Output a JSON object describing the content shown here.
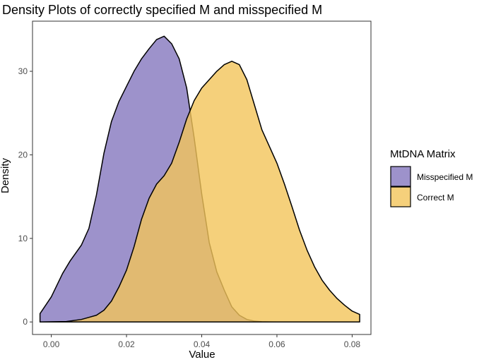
{
  "chart_data": {
    "type": "area",
    "title": "Density Plots of correctly specified M and misspecified M",
    "xlabel": "Value",
    "ylabel": "Density",
    "xlim": [
      -0.005,
      0.085
    ],
    "ylim": [
      -1.5,
      36
    ],
    "x_ticks": [
      0.0,
      0.02,
      0.04,
      0.06,
      0.08
    ],
    "x_tick_labels": [
      "0.00",
      "0.02",
      "0.04",
      "0.06",
      "0.08"
    ],
    "y_ticks": [
      0,
      10,
      20,
      30
    ],
    "y_tick_labels": [
      "0",
      "10",
      "20",
      "30"
    ],
    "grid": false,
    "legend": {
      "title": "MtDNA Matrix",
      "position": "right",
      "entries": [
        "Misspecified M",
        "Correct M"
      ]
    },
    "series": [
      {
        "name": "Misspecified M",
        "color": "#8477BE",
        "opacity": 0.8,
        "x": [
          -0.003,
          0.0,
          0.003,
          0.005,
          0.008,
          0.01,
          0.012,
          0.014,
          0.016,
          0.018,
          0.02,
          0.022,
          0.024,
          0.026,
          0.028,
          0.03,
          0.032,
          0.034,
          0.036,
          0.038,
          0.04,
          0.042,
          0.044,
          0.046,
          0.048,
          0.05,
          0.052,
          0.054,
          0.056,
          0.058,
          0.06
        ],
        "y": [
          1.0,
          3.0,
          5.8,
          7.3,
          9.2,
          11.2,
          15.2,
          20.2,
          24.0,
          26.4,
          28.2,
          30.0,
          31.5,
          32.7,
          33.8,
          34.2,
          33.3,
          31.5,
          28.0,
          22.0,
          15.3,
          9.5,
          6.0,
          3.8,
          1.8,
          0.8,
          0.3,
          0.1,
          0.03,
          0.01,
          0.0
        ]
      },
      {
        "name": "Correct M",
        "color": "#F2C45A",
        "opacity": 0.8,
        "x": [
          -0.003,
          0.004,
          0.008,
          0.012,
          0.014,
          0.016,
          0.018,
          0.02,
          0.022,
          0.024,
          0.026,
          0.028,
          0.03,
          0.032,
          0.034,
          0.036,
          0.038,
          0.04,
          0.042,
          0.044,
          0.046,
          0.048,
          0.05,
          0.052,
          0.054,
          0.056,
          0.058,
          0.06,
          0.062,
          0.064,
          0.066,
          0.068,
          0.07,
          0.072,
          0.074,
          0.076,
          0.078,
          0.08,
          0.082
        ],
        "y": [
          0.0,
          0.05,
          0.3,
          0.8,
          1.4,
          2.5,
          4.2,
          6.2,
          9.0,
          12.3,
          14.8,
          16.5,
          17.5,
          19.0,
          21.5,
          24.3,
          26.5,
          28.0,
          29.0,
          30.0,
          30.8,
          31.2,
          30.8,
          29.0,
          26.0,
          23.0,
          21.0,
          19.0,
          16.5,
          13.8,
          11.0,
          8.6,
          6.6,
          5.0,
          3.8,
          2.8,
          2.0,
          1.3,
          0.9
        ]
      }
    ]
  }
}
